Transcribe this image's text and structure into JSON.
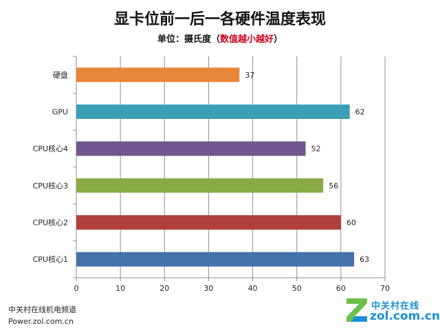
{
  "header": {
    "title": "显卡位前一后一各硬件温度表现",
    "subtitle_prefix": "单位：摄氏度（",
    "subtitle_highlight": "数值越小越好",
    "subtitle_suffix": "）",
    "highlight_color": "#d0021b"
  },
  "chart_data": {
    "type": "bar",
    "orientation": "horizontal",
    "categories": [
      "硬盘",
      "GPU",
      "CPU核心4",
      "CPU核心3",
      "CPU核心2",
      "CPU核心1"
    ],
    "values": [
      37,
      62,
      52,
      56,
      60,
      63
    ],
    "colors": [
      "#e8873a",
      "#3b9fb5",
      "#71568f",
      "#8aaa47",
      "#b0403c",
      "#4472a8"
    ],
    "xlim": [
      0,
      70
    ],
    "xticks": [
      0,
      10,
      20,
      30,
      40,
      50,
      60,
      70
    ],
    "grid": true,
    "data_labels": true
  },
  "footer": {
    "line1": "中关村在线机电频道",
    "line2": "Power.zol.com.cn"
  },
  "logo": {
    "cn": "中关村在线",
    "en": "zol.com.cn",
    "icon": "zol-z-logo-icon"
  }
}
